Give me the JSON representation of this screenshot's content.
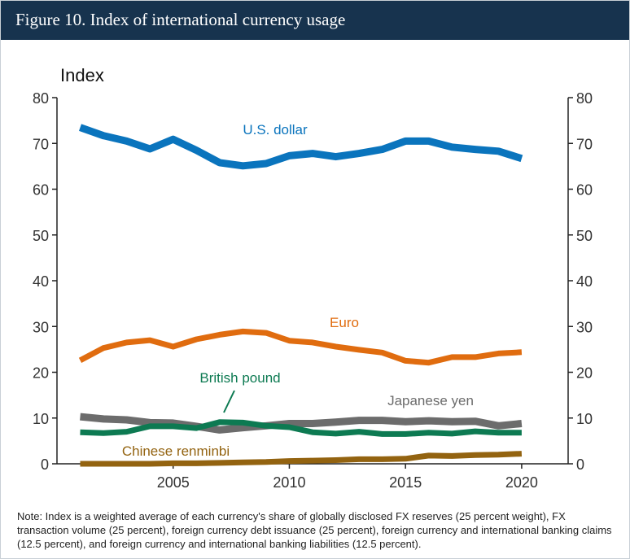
{
  "figure": {
    "title": "Figure 10. Index of international currency usage",
    "note": "Note: Index is a weighted average of each currency's share of globally disclosed FX reserves (25 percent weight), FX transaction volume (25 percent), foreign currency debt issuance (25 percent), foreign currency and international banking claims (12.5 percent), and foreign currency and international banking liabilities (12.5 percent)."
  },
  "chart_data": {
    "type": "line",
    "ylabel": "Index",
    "xlim": [
      2000,
      2022
    ],
    "ylim": [
      0,
      80
    ],
    "xticks": [
      2005,
      2010,
      2015,
      2020
    ],
    "yticks": [
      0,
      10,
      20,
      30,
      40,
      50,
      60,
      70,
      80
    ],
    "dual_y_axis": true,
    "grid": false,
    "x": [
      2001,
      2002,
      2003,
      2004,
      2005,
      2006,
      2007,
      2008,
      2009,
      2010,
      2011,
      2012,
      2013,
      2014,
      2015,
      2016,
      2017,
      2018,
      2019,
      2020
    ],
    "series": [
      {
        "name": "U.S. dollar",
        "color": "#0a74bd",
        "values": [
          73.5,
          71.7,
          70.5,
          68.8,
          70.9,
          68.5,
          65.8,
          65.1,
          65.6,
          67.3,
          67.8,
          67.1,
          67.8,
          68.7,
          70.5,
          70.5,
          69.2,
          68.7,
          68.3,
          66.7
        ]
      },
      {
        "name": "Euro",
        "color": "#e06c0f",
        "values": [
          22.6,
          25.3,
          26.5,
          27.0,
          25.6,
          27.2,
          28.2,
          28.9,
          28.6,
          26.9,
          26.5,
          25.6,
          24.9,
          24.3,
          22.5,
          22.1,
          23.3,
          23.3,
          24.1,
          24.4
        ]
      },
      {
        "name": "Japanese yen",
        "color": "#6c6c6c",
        "values": [
          10.3,
          9.8,
          9.6,
          9.0,
          8.9,
          8.2,
          7.4,
          7.9,
          8.3,
          8.8,
          8.8,
          9.1,
          9.5,
          9.5,
          9.2,
          9.4,
          9.2,
          9.3,
          8.3,
          8.8
        ]
      },
      {
        "name": "British pound",
        "color": "#0d7a52",
        "values": [
          6.9,
          6.7,
          7.0,
          8.2,
          8.2,
          7.8,
          9.1,
          9.0,
          8.3,
          8.0,
          6.9,
          6.6,
          7.0,
          6.5,
          6.5,
          6.8,
          6.6,
          7.1,
          6.8,
          6.8
        ]
      },
      {
        "name": "Chinese renminbi",
        "color": "#936310",
        "values": [
          0.0,
          0.0,
          0.0,
          0.0,
          0.1,
          0.1,
          0.2,
          0.3,
          0.4,
          0.6,
          0.7,
          0.8,
          1.0,
          1.0,
          1.1,
          1.8,
          1.7,
          1.9,
          2.0,
          2.2
        ]
      }
    ]
  }
}
